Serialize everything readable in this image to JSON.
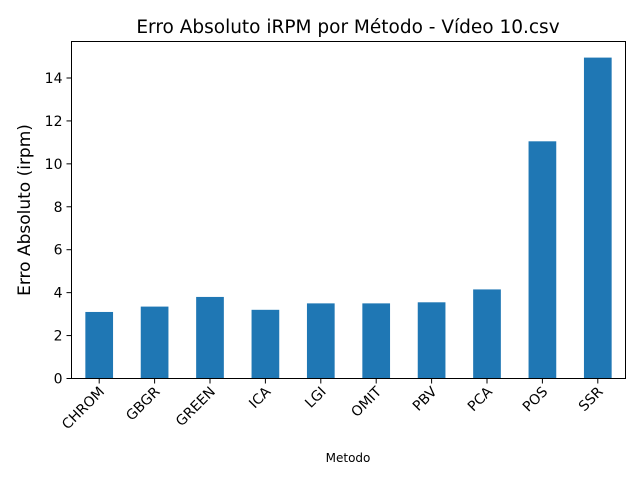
{
  "chart_data": {
    "type": "bar",
    "title": "Erro Absoluto iRPM por Método - Vídeo 10.csv",
    "xlabel": "Metodo",
    "ylabel": "Erro Absoluto (irpm)",
    "categories": [
      "CHROM",
      "GBGR",
      "GREEN",
      "ICA",
      "LGI",
      "OMIT",
      "PBV",
      "PCA",
      "POS",
      "SSR"
    ],
    "values": [
      3.1,
      3.35,
      3.8,
      3.2,
      3.5,
      3.5,
      3.55,
      4.15,
      11.05,
      14.95
    ],
    "ylim": [
      0,
      15.7
    ],
    "yticks": [
      0,
      2,
      4,
      6,
      8,
      10,
      12,
      14
    ],
    "grid": false,
    "legend": "none",
    "bar_color": "#1f77b4"
  }
}
